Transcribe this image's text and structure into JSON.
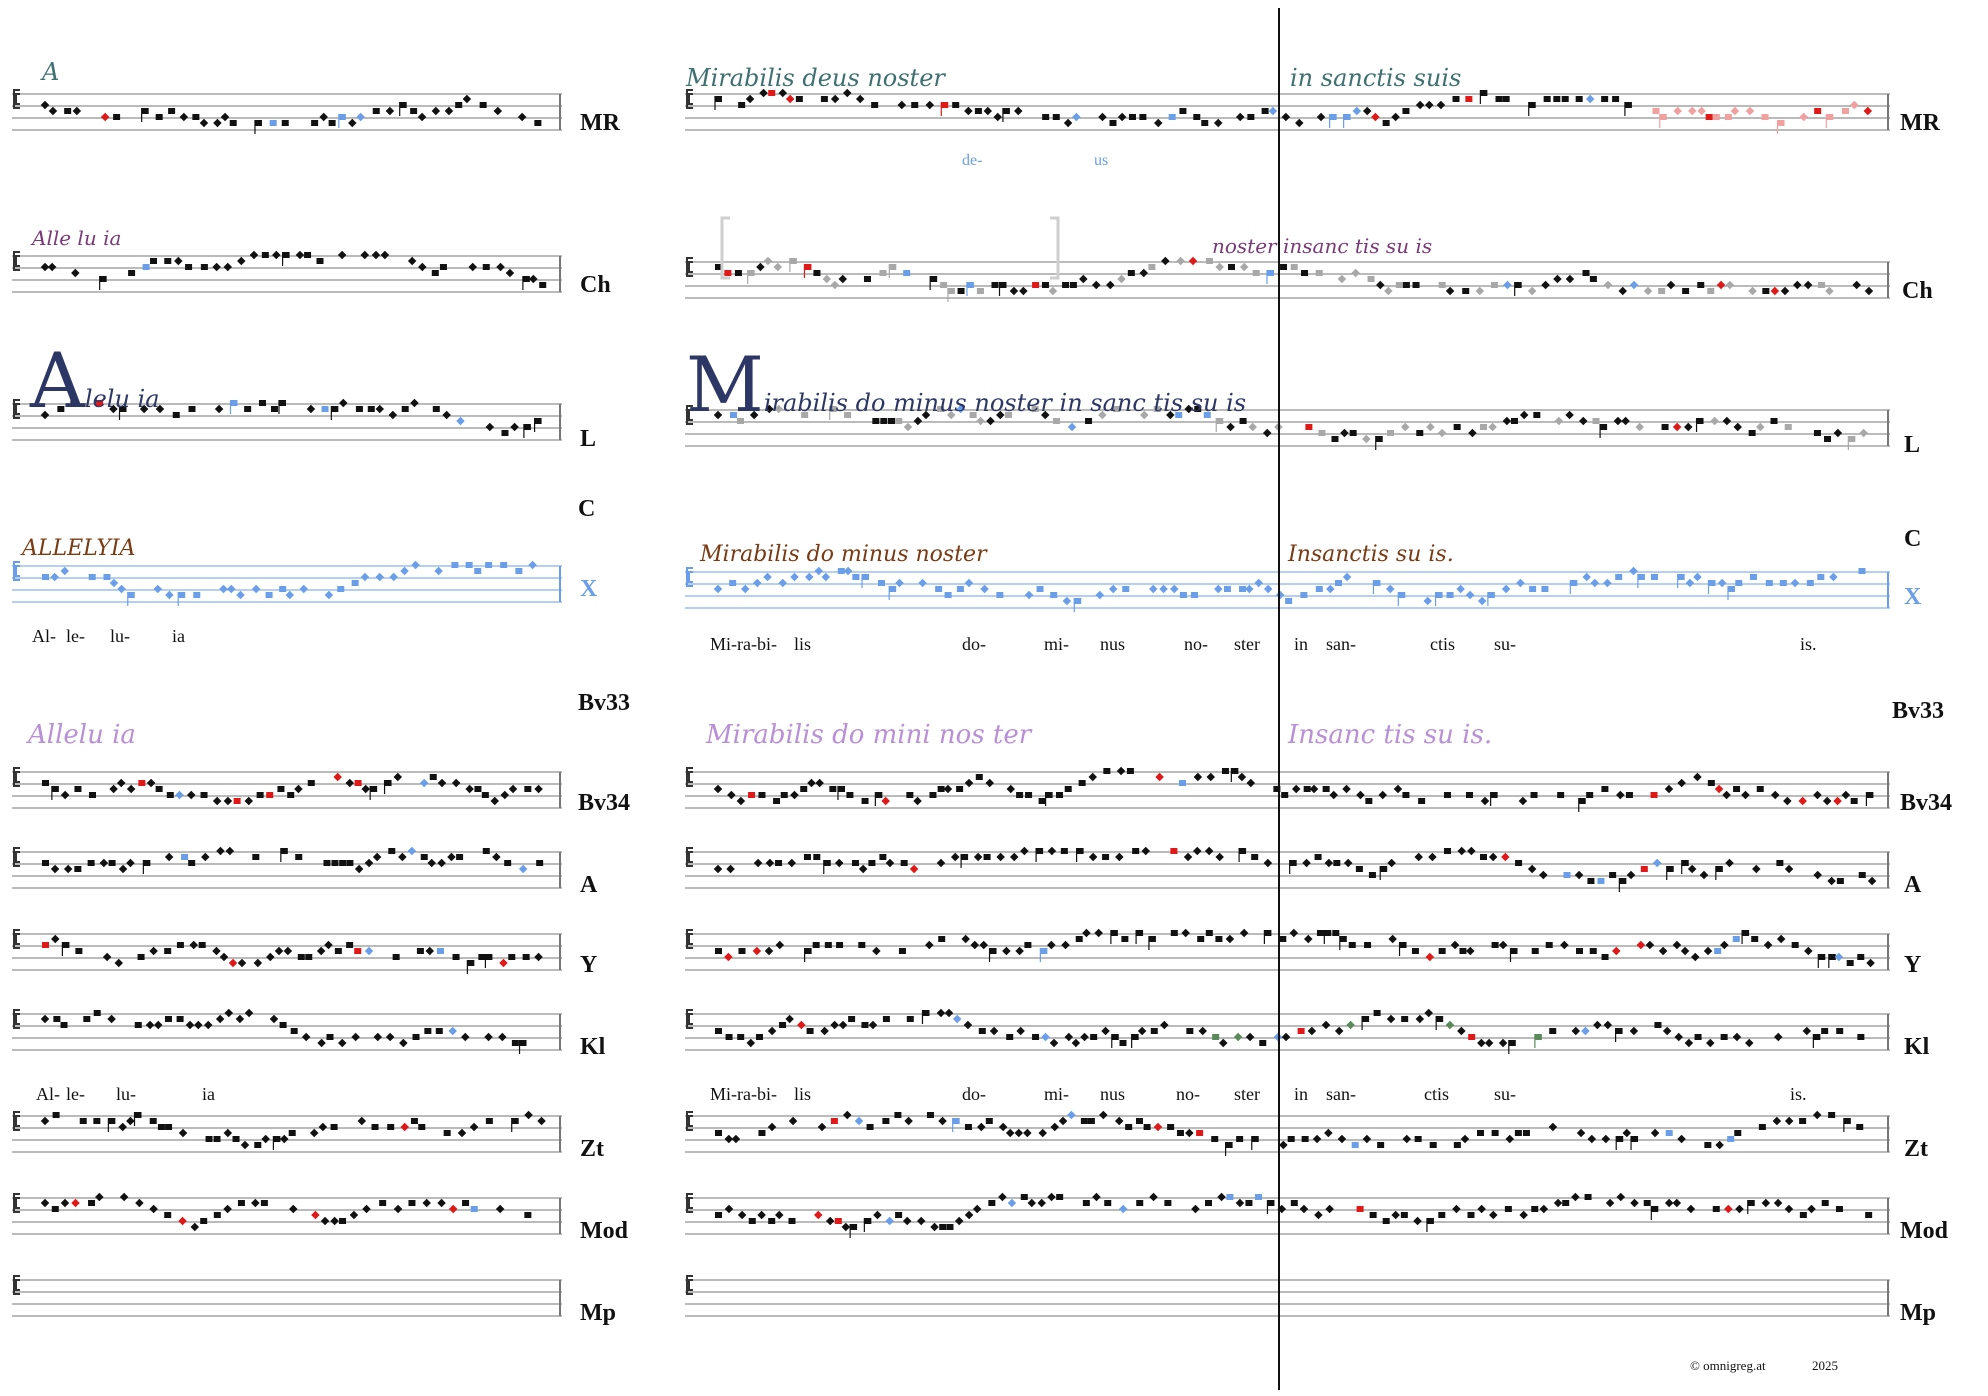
{
  "sigla": {
    "mr": "MR",
    "ch": "Ch",
    "l": "L",
    "c": "C",
    "x": "X",
    "bv33": "Bv33",
    "bv34": "Bv34",
    "a": "A",
    "y": "Y",
    "kl": "Kl",
    "zt": "Zt",
    "mod": "Mod",
    "mp": "Mp"
  },
  "manuscripts": {
    "mr_left": "A",
    "mr_right_1": "Mirabilis deus noster",
    "mr_right_2": "in sanctis suis",
    "ch_left": "Alle lu ia",
    "ch_right_1": "noster insanc tis su is",
    "l_left_cap": "A",
    "l_left": "lelu ia",
    "l_right_cap": "M",
    "l_right_1": "irabilis do minus noster in sanc tis su is",
    "c_left": "ALLELYIA",
    "c_right_1": "Mirabilis do minus noster",
    "c_right_2": "Insanctis su is.",
    "bv_left": "Allelu ia",
    "bv_right_1": "Mirabilis do mini nos ter",
    "bv_right_2": "Insanc tis su is."
  },
  "lyrics_x": {
    "left": [
      "Al-",
      "le-",
      "lu-",
      "ia"
    ],
    "right": [
      "Mi-ra-bi-",
      "lis",
      "do-",
      "mi-",
      "nus",
      "no-",
      "ster",
      "in",
      "san-",
      "ctis",
      "su-",
      "is."
    ]
  },
  "lyrics_kl": {
    "left": [
      "Al-",
      "le-",
      "lu-",
      "ia"
    ],
    "right": [
      "Mi-ra-bi-",
      "lis",
      "do-",
      "mi-",
      "nus",
      "no-",
      "ster",
      "in",
      "san-",
      "ctis",
      "su-",
      "is."
    ]
  },
  "mr_extra_lyrics": [
    "de-",
    "us"
  ],
  "footer": {
    "copyright": "© omnigreg.at",
    "year": "2025"
  },
  "colors": {
    "staff": "#777777",
    "neume": "#111111",
    "red": "#e01818",
    "lightblue": "#6a9ee8",
    "grey": "#a8a8a8",
    "pink": "#f1a0a0",
    "green": "#5a8a5a"
  }
}
